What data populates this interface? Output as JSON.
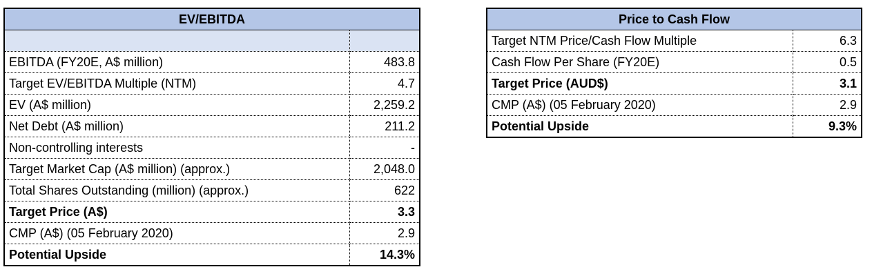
{
  "ev_ebitda": {
    "title": "EV/EBITDA",
    "rows": [
      {
        "label": "",
        "value": ""
      },
      {
        "label": "EBITDA (FY20E, A$ million)",
        "value": "483.8"
      },
      {
        "label": "Target EV/EBITDA Multiple (NTM)",
        "value": "4.7"
      },
      {
        "label": "EV (A$ million)",
        "value": "2,259.2"
      },
      {
        "label": "Net Debt (A$ million)",
        "value": "211.2"
      },
      {
        "label": "Non-controlling interests",
        "value": "-"
      },
      {
        "label": "Target Market Cap (A$ million) (approx.)",
        "value": "2,048.0"
      },
      {
        "label": "Total Shares Outstanding (million) (approx.)",
        "value": "622"
      },
      {
        "label": "Target Price (A$)",
        "value": "3.3"
      },
      {
        "label": "CMP (A$) (05 February 2020)",
        "value": "2.9"
      },
      {
        "label": "Potential Upside",
        "value": "14.3%"
      }
    ]
  },
  "price_cash_flow": {
    "title": "Price to Cash Flow",
    "rows": [
      {
        "label": "Target NTM Price/Cash Flow Multiple",
        "value": "6.3"
      },
      {
        "label": "Cash Flow Per Share (FY20E)",
        "value": "0.5"
      },
      {
        "label": "Target Price (AUD$)",
        "value": "3.1"
      },
      {
        "label": "CMP (A$) (05 February 2020)",
        "value": "2.9"
      },
      {
        "label": "Potential Upside",
        "value": "9.3%"
      }
    ]
  },
  "colors": {
    "header_fill": "#b4c6e7",
    "blank_row_fill": "#dae3f3"
  }
}
